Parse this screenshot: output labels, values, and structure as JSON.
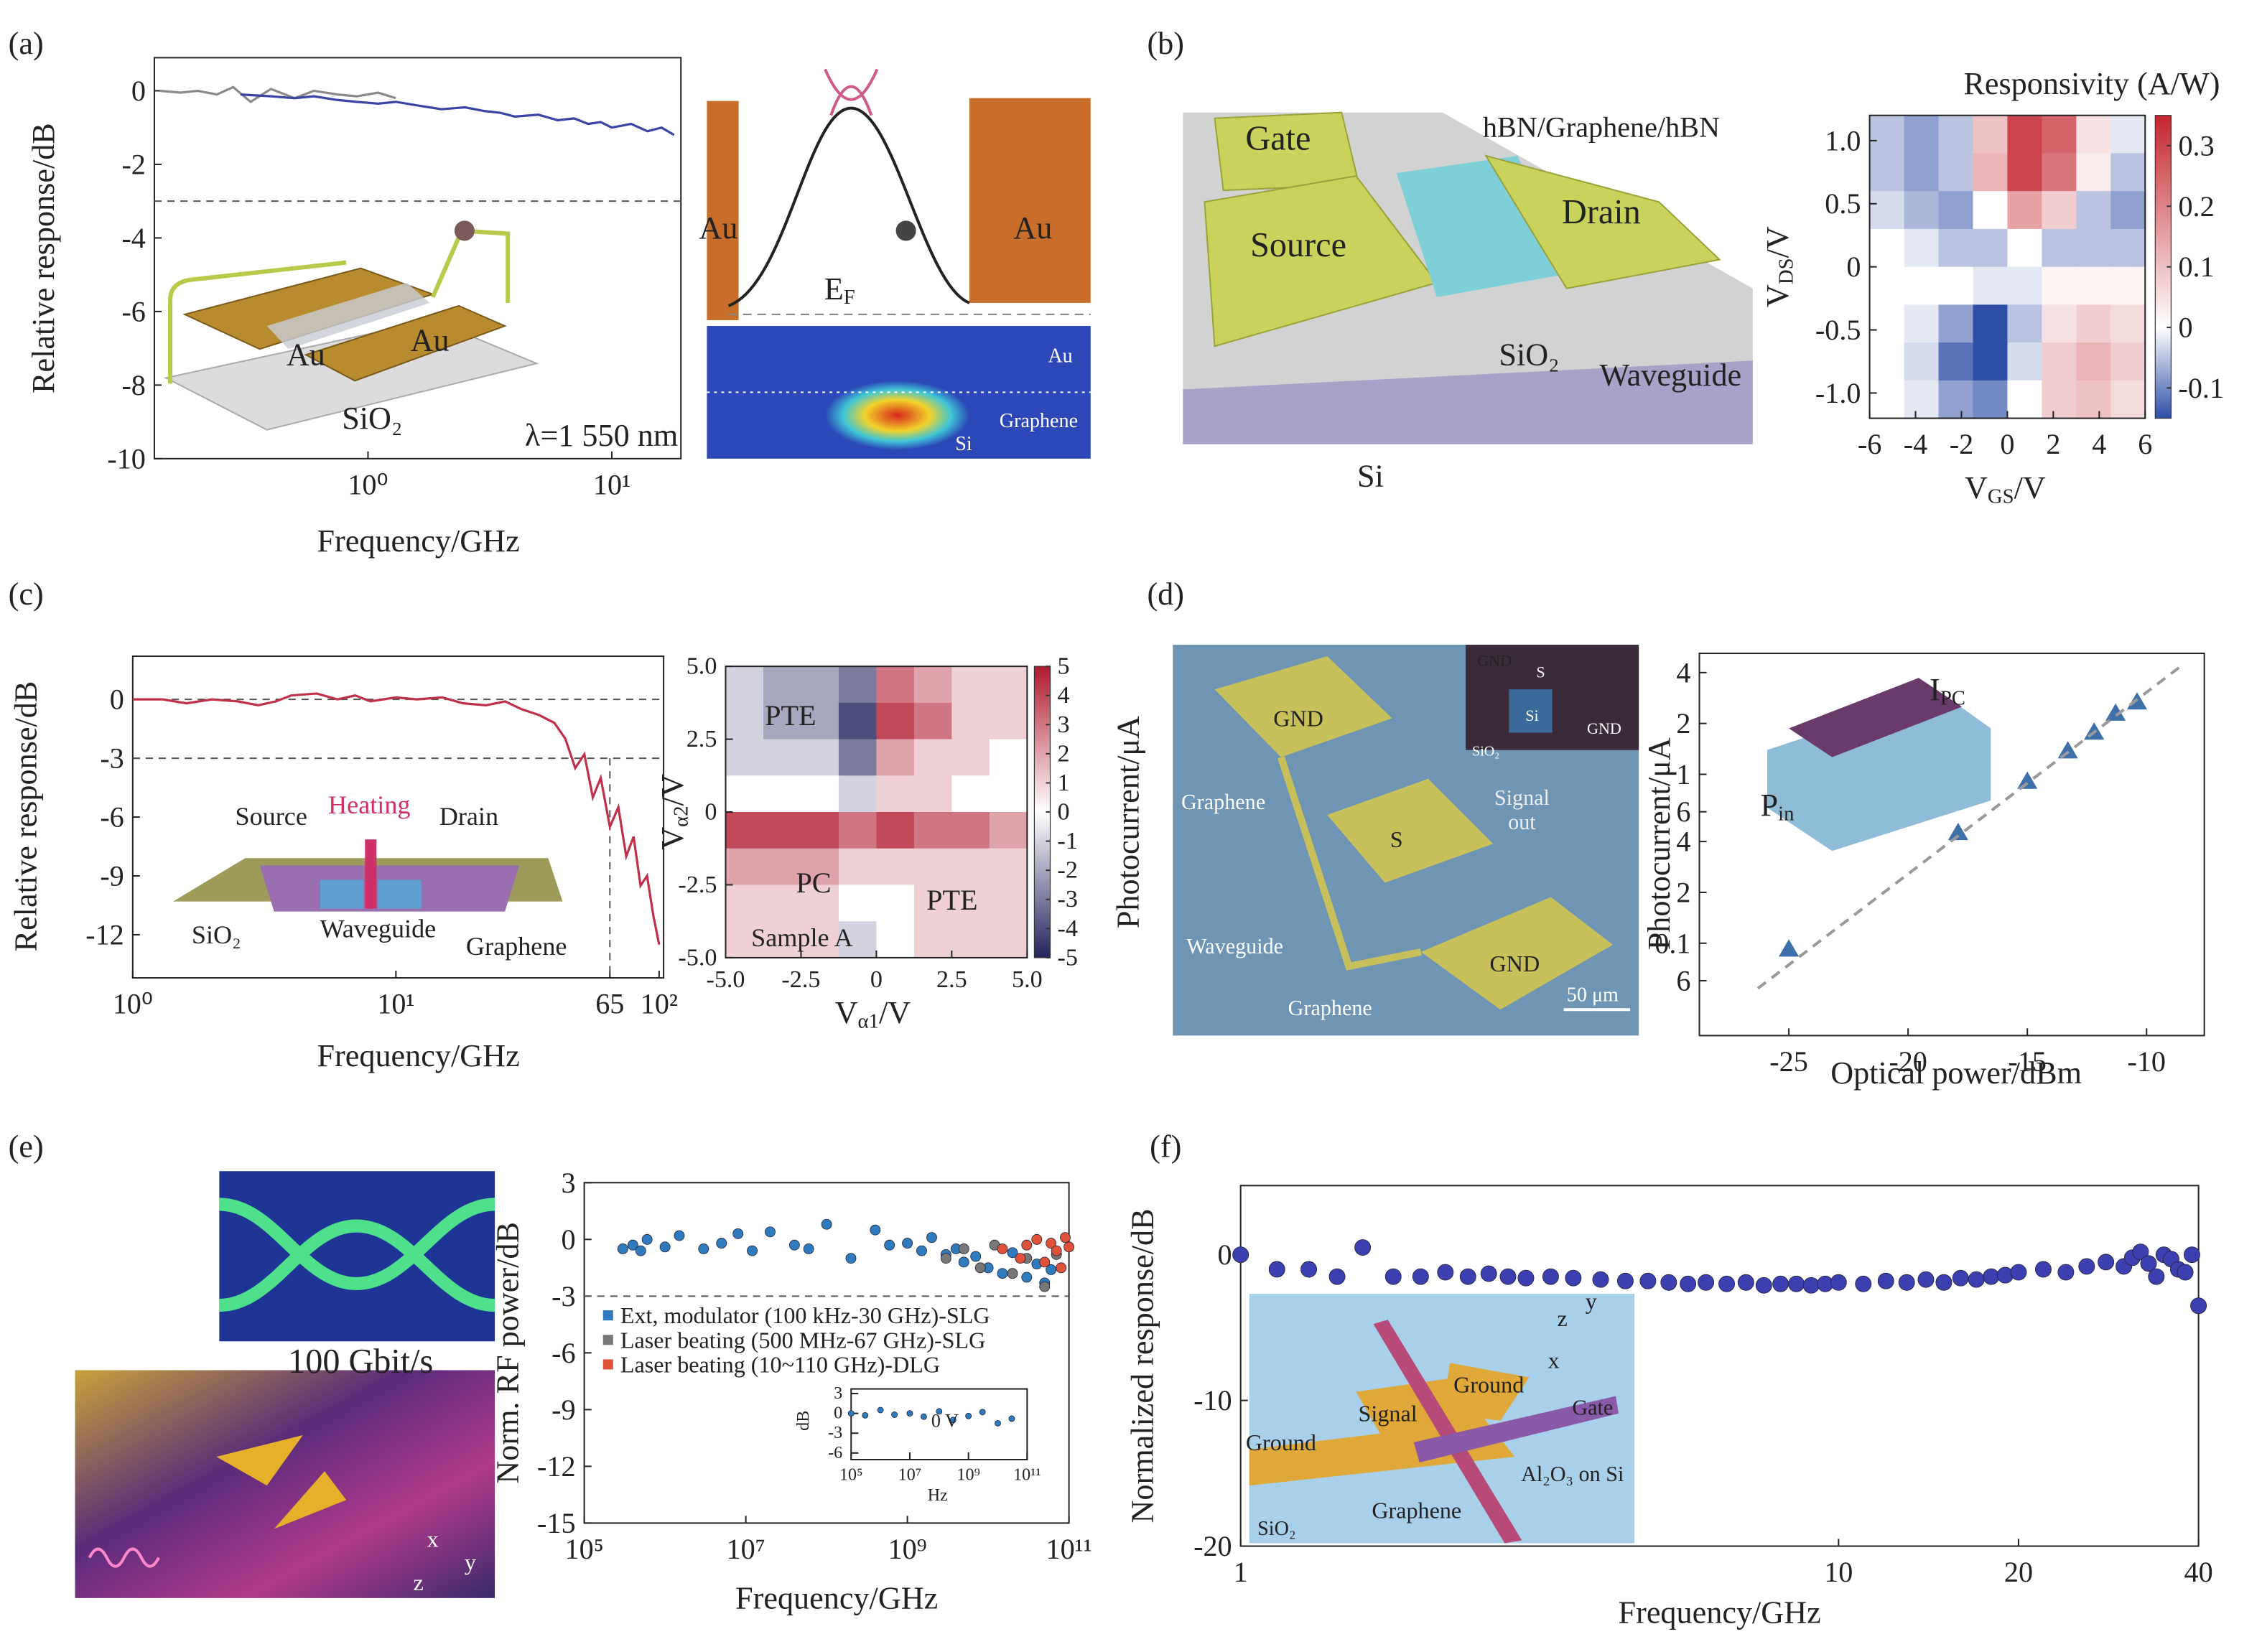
{
  "chart_data": [
    {
      "panel": "(a)",
      "type": "line",
      "xscale": "log",
      "xlabel": "Frequency/GHz",
      "ylabel": "Relative response/dB",
      "xlim": [
        0.133,
        19.2
      ],
      "ylim": [
        -10,
        0.9
      ],
      "xticks": [
        {
          "value": 1,
          "label": "10⁰"
        },
        {
          "value": 10,
          "label": "10¹"
        }
      ],
      "yticks": [
        0,
        -2,
        -4,
        -6,
        -8,
        -10
      ],
      "hlines": [
        -3
      ],
      "series": [
        {
          "color": "#8a8a8a",
          "x": [
            0.14,
            0.17,
            0.2,
            0.24,
            0.28,
            0.33,
            0.4,
            0.5,
            0.6,
            0.75,
            0.9,
            1.1,
            1.3
          ],
          "values": [
            0,
            -0.05,
            0,
            -0.1,
            0.1,
            -0.3,
            0.05,
            -0.2,
            0,
            -0.1,
            -0.15,
            -0.05,
            -0.2
          ]
        },
        {
          "color": "#3b44a6",
          "x": [
            0.3,
            0.4,
            0.5,
            0.6,
            0.75,
            0.9,
            1.1,
            1.3,
            1.6,
            2,
            2.5,
            3,
            3.5,
            4,
            5,
            6,
            7,
            8,
            9,
            10,
            12,
            14,
            16,
            18
          ],
          "values": [
            -0.1,
            -0.15,
            -0.2,
            -0.15,
            -0.25,
            -0.3,
            -0.35,
            -0.3,
            -0.4,
            -0.5,
            -0.45,
            -0.55,
            -0.6,
            -0.7,
            -0.65,
            -0.8,
            -0.75,
            -0.9,
            -0.85,
            -1.0,
            -0.9,
            -1.1,
            -1.0,
            -1.2
          ]
        }
      ],
      "annotations": [
        "Au",
        "Au",
        "SiO₂",
        "λ=1 550 nm",
        "Au",
        {
          "text": "E",
          "sub": "F"
        },
        "Au",
        "Au",
        "Graphene",
        "Si"
      ]
    },
    {
      "panel": "(b)",
      "type": "heatmap",
      "xlabel": {
        "text": "V",
        "sub": "GS",
        "after": "/V"
      },
      "ylabel": {
        "text": "V",
        "sub": "DS",
        "after": "/V"
      },
      "colorbar_title": "Responsivity (A/W)",
      "xlim": [
        -6,
        6
      ],
      "ylim": [
        -1.2,
        1.2
      ],
      "xticks": [
        -6,
        -4,
        -2,
        0,
        2,
        4,
        6
      ],
      "yticks": [
        {
          "value": 1,
          "label": "1.0"
        },
        0.5,
        0,
        -0.5,
        {
          "value": -1,
          "label": "-1.0"
        }
      ],
      "x": [
        -5.25,
        -3.75,
        -2.25,
        -0.75,
        0.75,
        2.25,
        3.75,
        5.25
      ],
      "y": [
        1.05,
        0.75,
        0.45,
        0.15,
        -0.15,
        -0.45,
        -0.75,
        -1.05
      ],
      "z": [
        [
          -0.05,
          -0.08,
          -0.05,
          0.1,
          0.3,
          0.25,
          0.05,
          -0.02
        ],
        [
          -0.05,
          -0.08,
          -0.05,
          0.12,
          0.3,
          0.22,
          0.03,
          -0.05
        ],
        [
          -0.03,
          -0.06,
          -0.08,
          0,
          0.15,
          0.08,
          -0.05,
          -0.08
        ],
        [
          0,
          -0.02,
          -0.05,
          -0.05,
          0,
          -0.05,
          -0.05,
          -0.05
        ],
        [
          0,
          0,
          0,
          -0.02,
          -0.02,
          0.02,
          0.02,
          0.02
        ],
        [
          0,
          -0.02,
          -0.08,
          -0.15,
          -0.05,
          0.05,
          0.08,
          0.06
        ],
        [
          0,
          -0.03,
          -0.12,
          -0.15,
          -0.03,
          0.08,
          0.12,
          0.08
        ],
        [
          0,
          -0.02,
          -0.08,
          -0.1,
          0,
          0.08,
          0.1,
          0.06
        ]
      ],
      "zlim": [
        -0.15,
        0.35
      ],
      "colors": [
        "#2f4fa6",
        "#ffffff",
        "#c4262e"
      ],
      "colorbar_ticks": [
        0.3,
        0.2,
        0.1,
        0,
        -0.1
      ],
      "annotations": [
        "Gate",
        "Source",
        "hBN/Graphene/hBN",
        "Drain",
        "SiO₂",
        "Waveguide",
        "Si"
      ]
    },
    {
      "panel": "(c)",
      "type": "line",
      "xscale": "log",
      "xlabel": "Frequency/GHz",
      "ylabel": "Relative response/dB",
      "xlim": [
        1,
        104
      ],
      "ylim": [
        -14.2,
        2.2
      ],
      "xticks": [
        {
          "value": 1,
          "label": "10⁰"
        },
        {
          "value": 10,
          "label": "10¹"
        },
        65,
        {
          "value": 100,
          "label": "10²"
        }
      ],
      "yticks": [
        0,
        -3,
        -6,
        -9,
        -12
      ],
      "hlines": [
        0,
        -3
      ],
      "vlines": [
        65
      ],
      "series": [
        {
          "color": "#c0304a",
          "x": [
            1,
            1.3,
            1.6,
            2,
            2.5,
            3,
            3.5,
            4,
            5,
            6,
            7,
            8,
            10,
            12,
            15,
            18,
            22,
            26,
            30,
            35,
            40,
            44,
            48,
            52,
            56,
            60,
            65,
            70,
            75,
            80,
            85,
            90,
            95,
            100
          ],
          "values": [
            0,
            0,
            -0.2,
            0,
            -0.1,
            -0.3,
            -0.1,
            0.2,
            0.3,
            0,
            0.2,
            -0.1,
            0.1,
            0,
            0.1,
            -0.2,
            -0.3,
            -0.1,
            -0.5,
            -0.8,
            -1.2,
            -2,
            -3.5,
            -2.8,
            -5,
            -4,
            -6.5,
            -5.5,
            -8,
            -7,
            -9.5,
            -9,
            -11,
            -12.5
          ]
        }
      ],
      "annotations": [
        "Source",
        "Heating",
        "Drain",
        "SiO₂",
        "Waveguide",
        "Graphene"
      ]
    },
    {
      "type": "heatmap",
      "xlabel": {
        "text": "V",
        "sub": "α1",
        "after": "/V"
      },
      "ylabel": {
        "text": "V",
        "sub": "α2",
        "after": "/V"
      },
      "xlim": [
        -5,
        5
      ],
      "ylim": [
        -5,
        5
      ],
      "xticks": [
        {
          "value": -5,
          "label": "-5.0"
        },
        -2.5,
        0,
        2.5,
        {
          "value": 5,
          "label": "5.0"
        }
      ],
      "yticks": [
        {
          "value": 5,
          "label": "5.0"
        },
        2.5,
        0,
        -2.5,
        {
          "value": -5,
          "label": "-5.0"
        }
      ],
      "x": [
        -4.375,
        -3.125,
        -1.875,
        -0.625,
        0.625,
        1.875,
        3.125,
        4.375
      ],
      "y": [
        4.375,
        3.125,
        1.875,
        0.625,
        -0.625,
        -1.875,
        -3.125,
        -4.375
      ],
      "z": [
        [
          -1,
          -2,
          -2,
          -3,
          3,
          2,
          1,
          1
        ],
        [
          -1,
          -2,
          -2,
          -4,
          4,
          3,
          1,
          1
        ],
        [
          -1,
          -1,
          -1,
          -3,
          2,
          1,
          1,
          0
        ],
        [
          0,
          0,
          0,
          -1,
          1,
          1,
          0,
          0
        ],
        [
          4,
          4,
          4,
          3,
          4,
          3,
          3,
          2
        ],
        [
          2,
          2,
          2,
          1,
          1,
          1,
          1,
          1
        ],
        [
          1,
          1,
          1,
          0,
          0,
          1,
          1,
          1
        ],
        [
          1,
          1,
          1,
          -1,
          0,
          1,
          1,
          1
        ]
      ],
      "zlim": [
        -5,
        5
      ],
      "colors": [
        "#23235e",
        "#ffffff",
        "#b01a2e"
      ],
      "colorbar_ticks": [
        5,
        4,
        3,
        2,
        1,
        0,
        -1,
        -2,
        -3,
        -4,
        -5
      ],
      "annotations": [
        "PTE",
        "PC",
        "PTE",
        "Sample A"
      ]
    },
    {
      "panel": "(d)",
      "type": "scatter",
      "yscale": "log",
      "marker": "triangle",
      "xlabel": "Optical power/dBm",
      "ylabel": "Photocurrent/μA",
      "xlim": [
        -28.75,
        -7.58
      ],
      "ylim": [
        0.0284,
        5.2
      ],
      "xticks": [
        -25,
        -20,
        -15,
        -10
      ],
      "yticks": [
        4,
        2,
        1,
        {
          "value": 0.6,
          "label": "6"
        },
        {
          "value": 0.4,
          "label": "4"
        },
        {
          "value": 0.2,
          "label": "2"
        },
        0.1,
        {
          "value": 0.06,
          "label": "6"
        }
      ],
      "series": [
        {
          "color": "#3d6fa8",
          "x": [
            -25,
            -17.9,
            -15,
            -13.3,
            -12.2,
            -11.3,
            -10.4
          ],
          "values": [
            0.092,
            0.45,
            0.905,
            1.37,
            1.77,
            2.29,
            2.67
          ]
        },
        {
          "color": "#9a9a9a",
          "mode": "line",
          "x": [
            -26.3,
            -8.55
          ],
          "values": [
            0.054,
            4.38
          ]
        }
      ],
      "annotations": [
        "GND",
        "S",
        "Signal",
        "out",
        "GND",
        "Graphene",
        "Waveguide",
        "Graphene",
        "50 μm",
        "GND",
        "S",
        "Si",
        "GND",
        "SiO₂",
        "Photocurrent/μA",
        {
          "text": "I",
          "sub": "PC"
        },
        {
          "text": "P",
          "sub": "in"
        }
      ]
    },
    {
      "panel": "(e)",
      "type": "scatter",
      "xscale": "log",
      "xlabel": "Frequency/GHz",
      "ylabel": "Norm. RF power/dB",
      "xlim": [
        100000,
        100000000000
      ],
      "ylim": [
        -15,
        3
      ],
      "xticks": [
        {
          "value": 100000,
          "label": "10⁵"
        },
        {
          "value": 10000000,
          "label": "10⁷"
        },
        {
          "value": 1000000000,
          "label": "10⁹"
        },
        {
          "value": 100000000000,
          "label": "10¹¹"
        }
      ],
      "yticks": [
        3,
        0,
        -3,
        -6,
        -9,
        -12,
        -15
      ],
      "hlines": [
        -3
      ],
      "series": [
        {
          "name": "Ext, modulator (100 kHz-30 GHz)-SLG",
          "color": "#2e7bbf",
          "x": [
            300000,
            400000,
            500000,
            600000,
            1000000,
            1500000,
            3000000,
            5000000,
            8000000,
            12000000,
            20000000,
            40000000,
            60000000,
            100000000,
            200000000,
            400000000,
            600000000,
            1000000000,
            1500000000,
            2000000000,
            3000000000,
            4000000000,
            5000000000,
            7000000000,
            10000000000,
            15000000000,
            20000000000,
            30000000000,
            40000000000,
            50000000000,
            60000000000
          ],
          "values": [
            -0.5,
            -0.3,
            -0.6,
            0,
            -0.4,
            0.2,
            -0.5,
            -0.2,
            0.3,
            -0.6,
            0.4,
            -0.3,
            -0.5,
            0.8,
            -1,
            0.5,
            -0.3,
            -0.2,
            -0.6,
            0.1,
            -0.8,
            -0.5,
            -1.2,
            -0.9,
            -1.5,
            -1.8,
            -0.7,
            -2,
            -1.3,
            -2.3,
            -1.6
          ]
        },
        {
          "name": "Laser beating (500 MHz-67 GHz)-SLG",
          "color": "#777777",
          "x": [
            3000000000,
            5000000000,
            8000000000,
            12000000000,
            20000000000,
            30000000000,
            50000000000,
            70000000000
          ],
          "values": [
            -1,
            -0.5,
            -1.5,
            -0.3,
            -1.8,
            -1,
            -2.5,
            -0.8
          ]
        },
        {
          "name": "Laser beating (10~110 GHz)-DLG",
          "color": "#e0513a",
          "x": [
            15000000000,
            25000000000,
            30000000000,
            40000000000,
            50000000000,
            60000000000,
            70000000000,
            80000000000,
            90000000000,
            100000000000
          ],
          "values": [
            -0.5,
            -1,
            -0.3,
            0,
            -1.2,
            -0.2,
            -0.6,
            -1.5,
            0.1,
            -0.4
          ]
        }
      ],
      "annotations": [
        "100 Gbit/s",
        "x",
        "z",
        "y"
      ]
    },
    {
      "type": "scatter",
      "xscale": "log",
      "xlabel": "Hz",
      "ylabel": "dB",
      "xlim": [
        100000,
        100000000000
      ],
      "ylim": [
        -7,
        3.7
      ],
      "xticks": [
        {
          "value": 100000,
          "label": "10⁵"
        },
        {
          "value": 10000000,
          "label": "10⁷"
        },
        {
          "value": 1000000000,
          "label": "10⁹"
        },
        {
          "value": 100000000000,
          "label": "10¹¹"
        }
      ],
      "yticks": [
        3,
        0,
        -3,
        -6
      ],
      "series": [
        {
          "color": "#2e7bbf",
          "x": [
            100000,
            300000,
            1000000,
            3000000,
            10000000,
            30000000,
            100000000,
            300000000,
            1000000000,
            3000000000,
            10000000000,
            30000000000
          ],
          "values": [
            0,
            -0.3,
            0.5,
            -0.2,
            0,
            -0.5,
            0.3,
            -1,
            -0.4,
            0.2,
            -1.5,
            -0.8
          ]
        }
      ],
      "annotations": [
        "0 V"
      ]
    },
    {
      "panel": "(f)",
      "type": "scatter",
      "xscale": "log",
      "xlabel": "Frequency/GHz",
      "ylabel": "Normalized response/dB",
      "xlim": [
        1,
        40
      ],
      "ylim": [
        -20,
        4.75
      ],
      "xticks": [
        1,
        10,
        20,
        40
      ],
      "yticks": [
        0,
        -10,
        -20
      ],
      "series": [
        {
          "color": "#3b3fb0",
          "x": [
            1,
            1.15,
            1.3,
            1.45,
            1.6,
            1.8,
            2,
            2.2,
            2.4,
            2.6,
            2.8,
            3,
            3.3,
            3.6,
            4,
            4.4,
            4.8,
            5.2,
            5.6,
            6,
            6.5,
            7,
            7.5,
            8,
            8.5,
            9,
            9.5,
            10,
            11,
            12,
            13,
            14,
            15,
            16,
            17,
            18,
            19,
            20,
            22,
            24,
            26,
            28,
            30,
            31,
            32,
            33,
            34,
            35,
            36,
            37,
            38,
            39,
            40
          ],
          "values": [
            0,
            -1,
            -1,
            -1.5,
            0.5,
            -1.5,
            -1.5,
            -1.2,
            -1.5,
            -1.3,
            -1.5,
            -1.6,
            -1.5,
            -1.6,
            -1.7,
            -1.8,
            -1.8,
            -1.9,
            -2,
            -1.9,
            -2,
            -1.9,
            -2.1,
            -2,
            -2,
            -2.1,
            -2,
            -1.9,
            -2,
            -1.8,
            -1.9,
            -1.7,
            -1.9,
            -1.6,
            -1.7,
            -1.5,
            -1.4,
            -1.2,
            -1,
            -1.2,
            -0.8,
            -0.5,
            -0.8,
            -0.2,
            0.2,
            -0.6,
            -1.5,
            0,
            -0.3,
            -1,
            -1.2,
            0,
            -3.5
          ]
        }
      ],
      "annotations": [
        "z",
        "y",
        "x",
        "Ground",
        "Signal",
        "Gate",
        "Ground",
        "Al₂O₃ on Si",
        "Graphene",
        "SiO₂"
      ]
    }
  ]
}
